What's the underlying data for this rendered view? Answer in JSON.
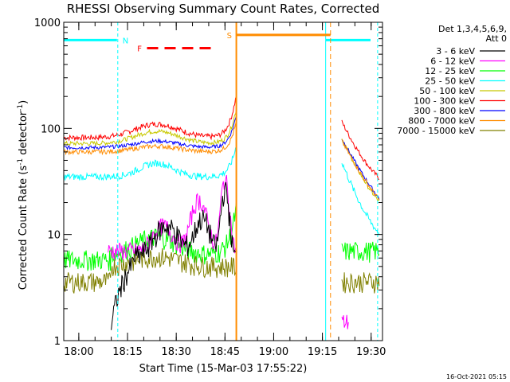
{
  "chart_data": {
    "type": "line",
    "title": "RHESSI Observing Summary Count Rates, Corrected",
    "xlabel": "Start Time (15-Mar-03 17:55:22)",
    "ylabel": "Corrected Count Rate (s",
    "ylabel_exp1": "-1",
    "ylabel_mid": " detector",
    "ylabel_exp2": "-1",
    "ylabel_end": ")",
    "footer": "16-Oct-2021 05:15",
    "y_scale": "log",
    "ylim": [
      1,
      1000
    ],
    "xlim": [
      "17:55:22",
      "19:33:30"
    ],
    "y_tick_labels": [
      "1",
      "10",
      "100",
      "1000"
    ],
    "x_tick_labels": [
      "18:00",
      "18:15",
      "18:30",
      "18:45",
      "19:00",
      "19:15",
      "19:30"
    ],
    "legend_header": [
      "Det 1,3,4,5,6,9,",
      "Att 0"
    ],
    "legend_position": "right",
    "series": [
      {
        "name": "3 - 6 keV",
        "color": "#000000"
      },
      {
        "name": "6 - 12 keV",
        "color": "#ff00ff"
      },
      {
        "name": "12 - 25 keV",
        "color": "#00ff00"
      },
      {
        "name": "25 - 50 keV",
        "color": "#00ffff"
      },
      {
        "name": "50 - 100 keV",
        "color": "#c8c800"
      },
      {
        "name": "100 - 300 keV",
        "color": "#ff0000"
      },
      {
        "name": "300 - 800 keV",
        "color": "#0000ff"
      },
      {
        "name": "800 - 7000 keV",
        "color": "#ff8c00"
      },
      {
        "name": "7000 - 15000 keV",
        "color": "#808000"
      }
    ],
    "flags": [
      {
        "label": "N",
        "color": "#00ffff"
      },
      {
        "label": "F",
        "color": "#ff0000"
      },
      {
        "label": "S",
        "color": "#ff8c00"
      }
    ]
  }
}
